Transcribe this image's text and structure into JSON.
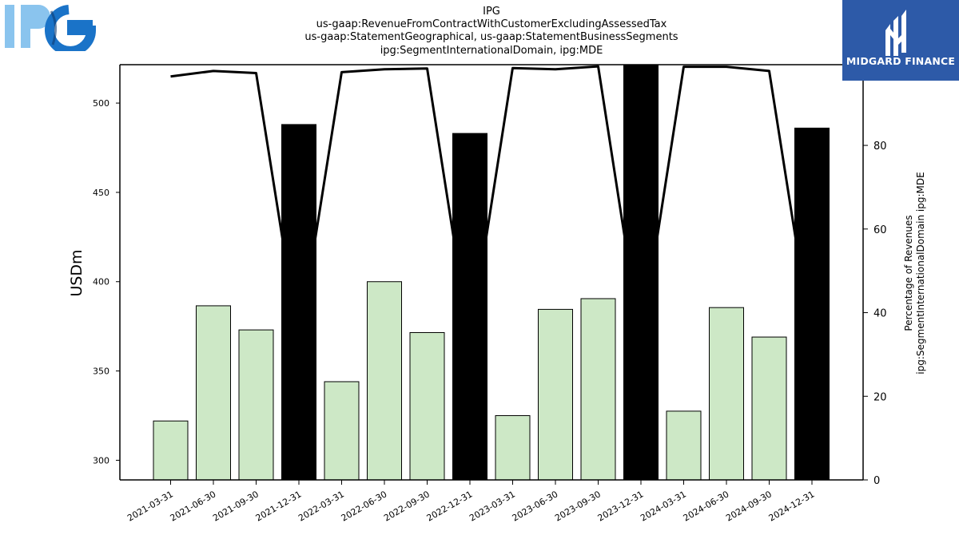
{
  "title": {
    "line1": "IPG",
    "line2": "us-gaap:RevenueFromContractWithCustomerExcludingAssessedTax",
    "line3": "us-gaap:StatementGeographical, us-gaap:StatementBusinessSegments",
    "line4": "ipg:SegmentInternationalDomain, ipg:MDE"
  },
  "logos": {
    "left": "IPG",
    "right": "MIDGARD FINANCE"
  },
  "colors": {
    "bar_normal": "#cde8c6",
    "bar_q4": "#000000",
    "line": "#000000",
    "logo_right_bg": "#2d5aa8",
    "logo_left_light": "#8ac4ee",
    "logo_left_dark": "#1a73c8"
  },
  "chart_data": {
    "type": "bar",
    "categories": [
      "2021-03-31",
      "2021-06-30",
      "2021-09-30",
      "2021-12-31",
      "2022-03-31",
      "2022-06-30",
      "2022-09-30",
      "2022-12-31",
      "2023-03-31",
      "2023-06-30",
      "2023-09-30",
      "2023-12-31",
      "2024-03-31",
      "2024-06-30",
      "2024-09-30",
      "2024-12-31"
    ],
    "series": [
      {
        "axis": "left",
        "type": "bar",
        "values": [
          322,
          386.5,
          373,
          488,
          344,
          400,
          371.5,
          483,
          325,
          384.5,
          390.5,
          525,
          327.5,
          385.5,
          369,
          486
        ]
      },
      {
        "axis": "right",
        "type": "line",
        "values": [
          96.5,
          97.8,
          97.3,
          33,
          97.5,
          98.2,
          98.4,
          33,
          98.5,
          98.2,
          98.9,
          33,
          98.8,
          98.8,
          97.8,
          33
        ]
      }
    ],
    "ylabel": "USDm",
    "ylabel_right": "Percentage of Revenues ipg:SegmentInternationalDomain ipg:MDE",
    "ylabel_right_line1": "Percentage of Revenues",
    "ylabel_right_line2": "ipg:SegmentInternationalDomain ipg:MDE",
    "ylim": [
      289,
      521.5
    ],
    "ylim_right": [
      0,
      99.3
    ],
    "yticks": [
      300,
      350,
      400,
      450,
      500
    ],
    "yticks_right": [
      0,
      20,
      40,
      60,
      80
    ]
  }
}
